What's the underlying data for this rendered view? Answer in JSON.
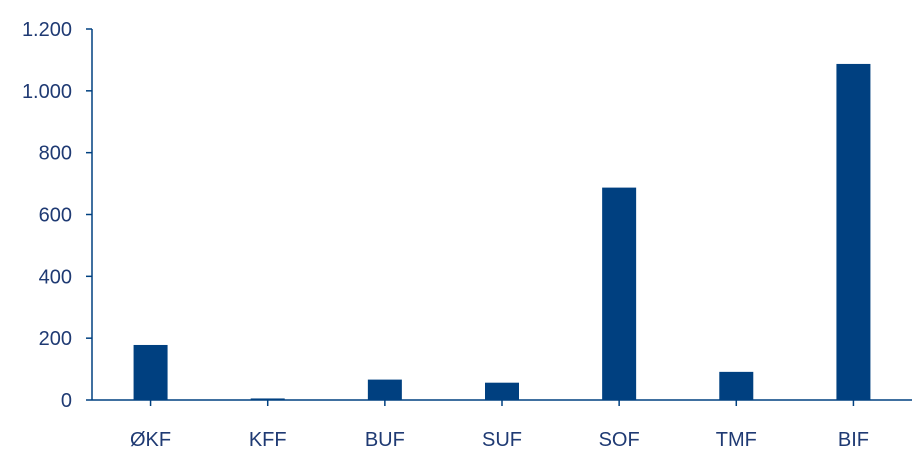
{
  "colors": {
    "bar": "#004080",
    "axis": "#004080",
    "text": "#1f3a73"
  },
  "chart_data": {
    "type": "bar",
    "categories": [
      "ØKF",
      "KFF",
      "BUF",
      "SUF",
      "SOF",
      "TMF",
      "BIF"
    ],
    "values": [
      178,
      5,
      66,
      56,
      687,
      91,
      1087
    ],
    "ylim": [
      0,
      1200
    ],
    "yticks": [
      0,
      200,
      400,
      600,
      800,
      1000,
      1200
    ],
    "ytick_labels": [
      "0",
      "200",
      "400",
      "600",
      "800",
      "1.000",
      "1.200"
    ],
    "grid": false,
    "legend": "none"
  }
}
